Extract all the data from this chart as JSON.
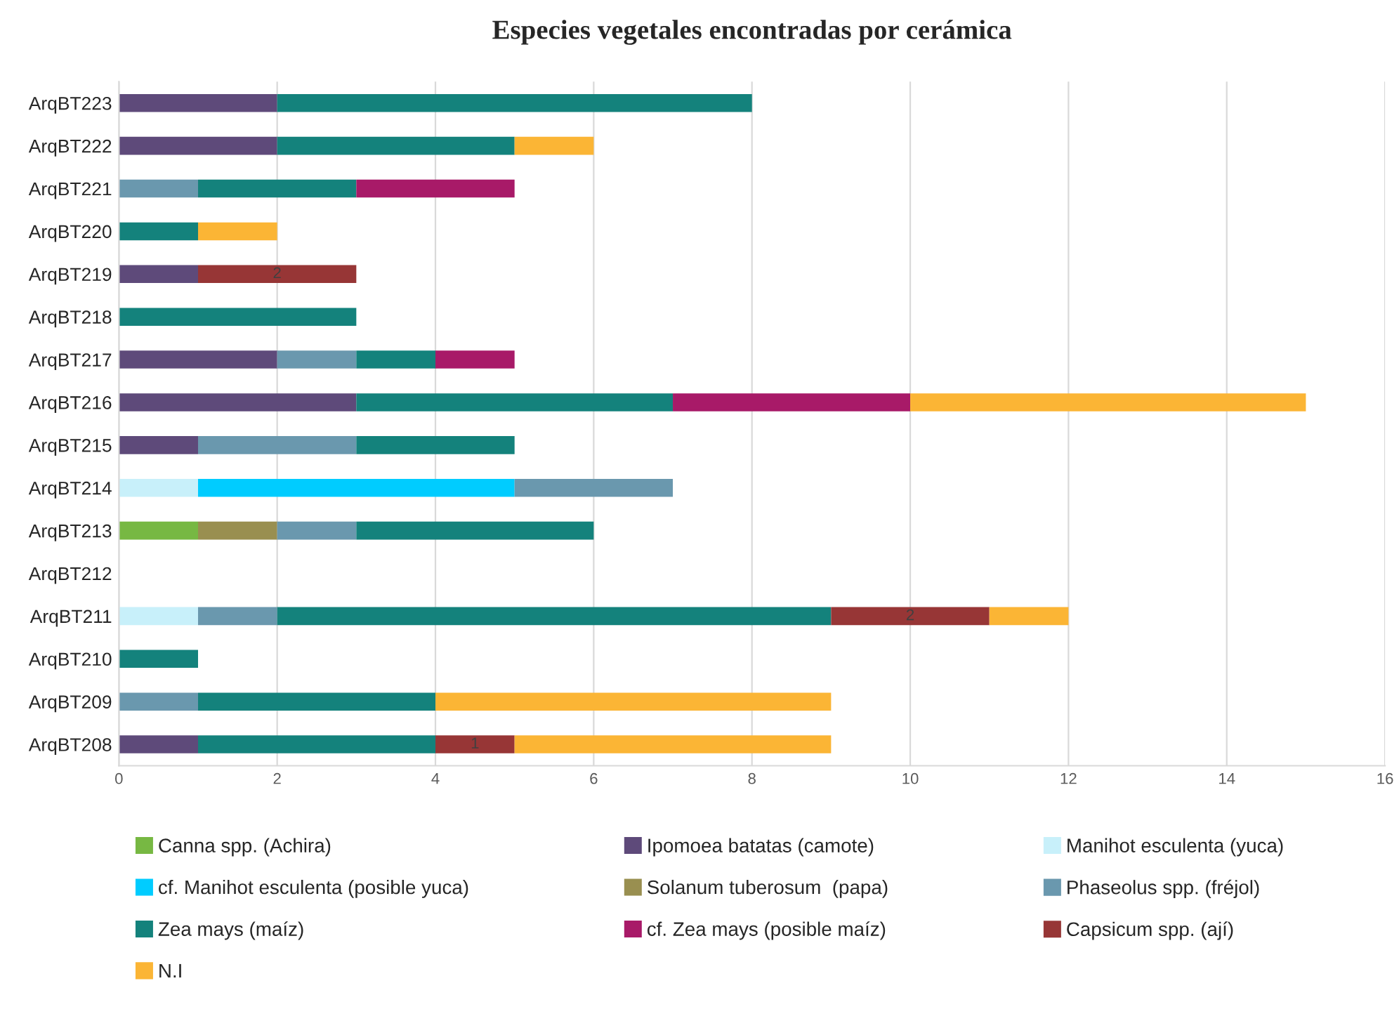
{
  "chart_data": {
    "type": "bar",
    "orientation": "horizontal",
    "stacked": true,
    "title": "Especies vegetales encontradas por cerámica",
    "categories": [
      "ArqBT223",
      "ArqBT222",
      "ArqBT221",
      "ArqBT220",
      "ArqBT219",
      "ArqBT218",
      "ArqBT217",
      "ArqBT216",
      "ArqBT215",
      "ArqBT214",
      "ArqBT213",
      "ArqBT212",
      "ArqBT211",
      "ArqBT210",
      "ArqBT209",
      "ArqBT208"
    ],
    "series": [
      {
        "name": "Canna spp. (Achira)",
        "color": "#77b843",
        "values": [
          0,
          0,
          0,
          0,
          0,
          0,
          0,
          0,
          0,
          0,
          1,
          0,
          0,
          0,
          0,
          0
        ]
      },
      {
        "name": "Ipomoea batatas (camote)",
        "color": "#5e4a7a",
        "values": [
          2,
          2,
          0,
          0,
          1,
          0,
          2,
          3,
          1,
          0,
          0,
          0,
          0,
          0,
          0,
          1
        ]
      },
      {
        "name": "Manihot esculenta (yuca)",
        "color": "#c8f0fa",
        "values": [
          0,
          0,
          0,
          0,
          0,
          0,
          0,
          0,
          0,
          1,
          0,
          0,
          1,
          0,
          0,
          0
        ]
      },
      {
        "name": "cf. Manihot esculenta (posible yuca)",
        "color": "#00ccff",
        "values": [
          0,
          0,
          0,
          0,
          0,
          0,
          0,
          0,
          0,
          4,
          0,
          0,
          0,
          0,
          0,
          0
        ]
      },
      {
        "name": "Solanum tuberosum  (papa)",
        "color": "#998f50",
        "values": [
          0,
          0,
          0,
          0,
          0,
          0,
          0,
          0,
          0,
          0,
          1,
          0,
          0,
          0,
          0,
          0
        ]
      },
      {
        "name": "Phaseolus spp. (fréjol)",
        "color": "#6a98ae",
        "values": [
          0,
          0,
          1,
          0,
          0,
          0,
          1,
          0,
          2,
          2,
          1,
          0,
          1,
          0,
          1,
          0
        ]
      },
      {
        "name": "Zea mays (maíz)",
        "color": "#14827c",
        "values": [
          6,
          3,
          2,
          1,
          0,
          3,
          1,
          4,
          2,
          0,
          3,
          0,
          7,
          1,
          3,
          3
        ]
      },
      {
        "name": "cf. Zea mays (posible maíz)",
        "color": "#a81a68",
        "values": [
          0,
          0,
          2,
          0,
          0,
          0,
          1,
          3,
          0,
          0,
          0,
          0,
          0,
          0,
          0,
          0
        ]
      },
      {
        "name": "Capsicum spp. (ají)",
        "color": "#973636",
        "values": [
          0,
          0,
          0,
          0,
          2,
          0,
          0,
          0,
          0,
          0,
          0,
          0,
          2,
          0,
          0,
          1
        ],
        "value_labels": [
          null,
          null,
          null,
          null,
          "2",
          null,
          null,
          null,
          null,
          null,
          null,
          null,
          "2",
          null,
          null,
          "1"
        ]
      },
      {
        "name": "N.I",
        "color": "#fbb535",
        "values": [
          0,
          1,
          0,
          1,
          0,
          0,
          0,
          5,
          0,
          0,
          0,
          0,
          1,
          0,
          5,
          4
        ]
      }
    ],
    "xlim": [
      0,
      16
    ],
    "xticks": [
      0,
      2,
      4,
      6,
      8,
      10,
      12,
      14,
      16
    ],
    "grid": "x",
    "legend": "bottom"
  }
}
